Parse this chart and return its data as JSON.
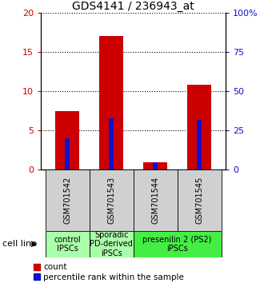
{
  "title": "GDS4141 / 236943_at",
  "samples": [
    "GSM701542",
    "GSM701543",
    "GSM701544",
    "GSM701545"
  ],
  "count_values": [
    7.5,
    17.0,
    1.0,
    10.8
  ],
  "percentile_values": [
    20.0,
    33.0,
    5.0,
    32.0
  ],
  "left_ylim": [
    0,
    20
  ],
  "right_ylim": [
    0,
    100
  ],
  "left_yticks": [
    0,
    5,
    10,
    15,
    20
  ],
  "right_yticks": [
    0,
    25,
    50,
    75,
    100
  ],
  "right_yticklabels": [
    "0",
    "25",
    "50",
    "75",
    "100%"
  ],
  "bar_color_red": "#cc0000",
  "bar_color_blue": "#1111cc",
  "bar_width": 0.55,
  "blue_bar_width": 0.12,
  "group_data": [
    {
      "start": 0,
      "end": 1,
      "label": "control\nIPSCs",
      "color": "#aaffaa"
    },
    {
      "start": 1,
      "end": 2,
      "label": "Sporadic\nPD-derived\niPSCs",
      "color": "#aaffaa"
    },
    {
      "start": 2,
      "end": 4,
      "label": "presenilin 2 (PS2)\niPSCs",
      "color": "#44ee44"
    }
  ],
  "cell_line_label": "cell line",
  "legend_count": "count",
  "legend_percentile": "percentile rank within the sample",
  "title_fontsize": 10,
  "tick_fontsize": 8,
  "sample_fontsize": 7,
  "group_fontsize": 7,
  "legend_fontsize": 7.5,
  "cell_line_fontsize": 8
}
